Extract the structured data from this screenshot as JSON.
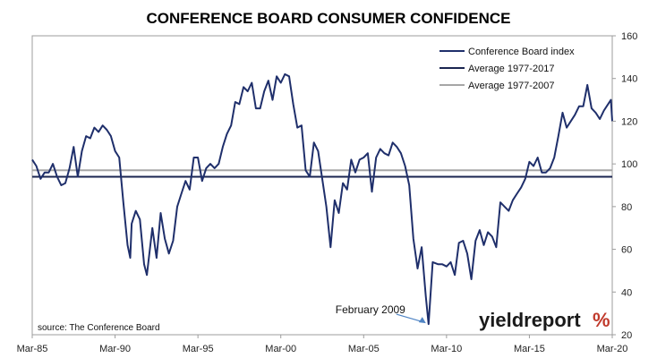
{
  "chart_data": {
    "type": "line",
    "title": "CONFERENCE BOARD CONSUMER CONFIDENCE",
    "x_ticks": [
      "Mar-85",
      "Mar-90",
      "Mar-95",
      "Mar-00",
      "Mar-05",
      "Mar-10",
      "Mar-15",
      "Mar-20"
    ],
    "y_ticks": [
      20,
      40,
      60,
      80,
      100,
      120,
      140,
      160
    ],
    "ylim": [
      20,
      160
    ],
    "xlim": [
      "1985-03",
      "2020-03"
    ],
    "grid": false,
    "legend_position": "top-right",
    "series": [
      {
        "name": "Conference Board index",
        "color": "#1f2f6b",
        "points": [
          [
            "1985-03",
            102
          ],
          [
            "1985-06",
            99
          ],
          [
            "1985-09",
            93
          ],
          [
            "1985-12",
            96
          ],
          [
            "1986-03",
            96
          ],
          [
            "1986-06",
            100
          ],
          [
            "1986-09",
            94
          ],
          [
            "1986-12",
            90
          ],
          [
            "1987-03",
            91
          ],
          [
            "1987-06",
            98
          ],
          [
            "1987-09",
            108
          ],
          [
            "1987-12",
            94
          ],
          [
            "1988-03",
            106
          ],
          [
            "1988-06",
            113
          ],
          [
            "1988-09",
            112
          ],
          [
            "1988-12",
            117
          ],
          [
            "1989-03",
            115
          ],
          [
            "1989-06",
            118
          ],
          [
            "1989-09",
            116
          ],
          [
            "1989-12",
            113
          ],
          [
            "1990-03",
            106
          ],
          [
            "1990-06",
            103
          ],
          [
            "1990-09",
            82
          ],
          [
            "1990-12",
            62
          ],
          [
            "1991-02",
            56
          ],
          [
            "1991-03",
            72
          ],
          [
            "1991-06",
            78
          ],
          [
            "1991-09",
            74
          ],
          [
            "1991-12",
            53
          ],
          [
            "1992-02",
            48
          ],
          [
            "1992-06",
            70
          ],
          [
            "1992-09",
            56
          ],
          [
            "1992-12",
            77
          ],
          [
            "1993-03",
            65
          ],
          [
            "1993-06",
            58
          ],
          [
            "1993-09",
            64
          ],
          [
            "1993-12",
            80
          ],
          [
            "1994-03",
            86
          ],
          [
            "1994-06",
            92
          ],
          [
            "1994-09",
            88
          ],
          [
            "1994-12",
            103
          ],
          [
            "1995-03",
            103
          ],
          [
            "1995-06",
            92
          ],
          [
            "1995-09",
            98
          ],
          [
            "1995-12",
            100
          ],
          [
            "1996-03",
            98
          ],
          [
            "1996-06",
            100
          ],
          [
            "1996-09",
            108
          ],
          [
            "1996-12",
            114
          ],
          [
            "1997-03",
            118
          ],
          [
            "1997-06",
            129
          ],
          [
            "1997-09",
            128
          ],
          [
            "1997-12",
            136
          ],
          [
            "1998-03",
            134
          ],
          [
            "1998-06",
            138
          ],
          [
            "1998-09",
            126
          ],
          [
            "1998-12",
            126
          ],
          [
            "1999-03",
            134
          ],
          [
            "1999-06",
            139
          ],
          [
            "1999-09",
            130
          ],
          [
            "1999-12",
            141
          ],
          [
            "2000-03",
            138
          ],
          [
            "2000-06",
            142
          ],
          [
            "2000-09",
            141
          ],
          [
            "2000-12",
            128
          ],
          [
            "2001-03",
            117
          ],
          [
            "2001-06",
            118
          ],
          [
            "2001-09",
            97
          ],
          [
            "2001-12",
            94
          ],
          [
            "2002-03",
            110
          ],
          [
            "2002-06",
            106
          ],
          [
            "2002-09",
            93
          ],
          [
            "2002-12",
            80
          ],
          [
            "2003-03",
            61
          ],
          [
            "2003-06",
            83
          ],
          [
            "2003-09",
            77
          ],
          [
            "2003-12",
            91
          ],
          [
            "2004-03",
            88
          ],
          [
            "2004-06",
            102
          ],
          [
            "2004-09",
            96
          ],
          [
            "2004-12",
            102
          ],
          [
            "2005-03",
            103
          ],
          [
            "2005-06",
            105
          ],
          [
            "2005-09",
            87
          ],
          [
            "2005-12",
            103
          ],
          [
            "2006-03",
            107
          ],
          [
            "2006-06",
            105
          ],
          [
            "2006-09",
            104
          ],
          [
            "2006-12",
            110
          ],
          [
            "2007-03",
            108
          ],
          [
            "2007-06",
            105
          ],
          [
            "2007-09",
            99
          ],
          [
            "2007-12",
            90
          ],
          [
            "2008-03",
            65
          ],
          [
            "2008-06",
            51
          ],
          [
            "2008-09",
            61
          ],
          [
            "2008-12",
            38
          ],
          [
            "2009-02",
            25
          ],
          [
            "2009-05",
            54
          ],
          [
            "2009-09",
            53
          ],
          [
            "2009-12",
            53
          ],
          [
            "2010-03",
            52
          ],
          [
            "2010-06",
            54
          ],
          [
            "2010-09",
            48
          ],
          [
            "2010-12",
            63
          ],
          [
            "2011-03",
            64
          ],
          [
            "2011-06",
            58
          ],
          [
            "2011-09",
            46
          ],
          [
            "2011-12",
            64
          ],
          [
            "2012-03",
            69
          ],
          [
            "2012-06",
            62
          ],
          [
            "2012-09",
            68
          ],
          [
            "2012-12",
            66
          ],
          [
            "2013-03",
            61
          ],
          [
            "2013-06",
            82
          ],
          [
            "2013-09",
            80
          ],
          [
            "2013-12",
            78
          ],
          [
            "2014-03",
            83
          ],
          [
            "2014-06",
            86
          ],
          [
            "2014-09",
            89
          ],
          [
            "2014-12",
            93
          ],
          [
            "2015-03",
            101
          ],
          [
            "2015-06",
            99
          ],
          [
            "2015-09",
            103
          ],
          [
            "2015-12",
            96
          ],
          [
            "2016-03",
            96
          ],
          [
            "2016-06",
            98
          ],
          [
            "2016-09",
            103
          ],
          [
            "2016-12",
            113
          ],
          [
            "2017-03",
            124
          ],
          [
            "2017-06",
            117
          ],
          [
            "2017-09",
            120
          ],
          [
            "2017-12",
            123
          ],
          [
            "2018-03",
            127
          ],
          [
            "2018-06",
            127
          ],
          [
            "2018-09",
            137
          ],
          [
            "2018-12",
            126
          ],
          [
            "2019-03",
            124
          ],
          [
            "2019-06",
            121
          ],
          [
            "2019-09",
            125
          ],
          [
            "2019-12",
            128
          ],
          [
            "2020-02",
            130
          ],
          [
            "2020-03",
            120
          ]
        ]
      },
      {
        "name": "Average 1977-2017",
        "color": "#1a2550",
        "value": 94
      },
      {
        "name": "Average 1977-2007",
        "color": "#a6a6a6",
        "value": 97
      }
    ],
    "annotations": [
      {
        "text": "February 2009",
        "x": "2009-02",
        "y": 25
      }
    ]
  },
  "source_note": "source: The Conference Board",
  "logo": {
    "text": "yieldreport",
    "symbol": "%"
  }
}
